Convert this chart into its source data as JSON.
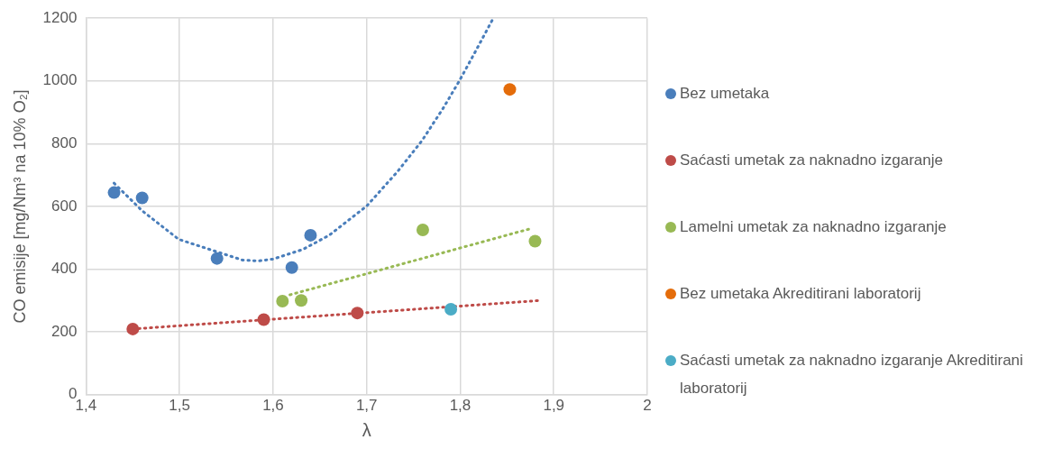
{
  "chart_data": {
    "type": "scatter",
    "xlabel": "λ",
    "ylabel": "CO emisije [mg/Nm³ na 10% O₂]",
    "xlim": [
      1.4,
      2
    ],
    "xticks": [
      {
        "value": 1.4,
        "label": "1,4"
      },
      {
        "value": 1.5,
        "label": "1,5"
      },
      {
        "value": 1.6,
        "label": "1,6"
      },
      {
        "value": 1.7,
        "label": "1,7"
      },
      {
        "value": 1.8,
        "label": "1,8"
      },
      {
        "value": 1.9,
        "label": "1,9"
      },
      {
        "value": 2,
        "label": "2"
      }
    ],
    "ylim": [
      0,
      1200
    ],
    "yticks": [
      0,
      200,
      400,
      600,
      800,
      1000,
      1200
    ],
    "grid": true,
    "legend": "right",
    "marker": "circle",
    "series": [
      {
        "name": "Bez umetaka",
        "color": "#4a7ebb",
        "x": [
          1.43,
          1.46,
          1.54,
          1.62,
          1.64
        ],
        "values": [
          644,
          627,
          434,
          405,
          508
        ]
      },
      {
        "name": "Saćasti umetak za naknadno izgaranje",
        "color": "#be4b48",
        "x": [
          1.45,
          1.59,
          1.69
        ],
        "values": [
          209,
          239,
          260
        ]
      },
      {
        "name": "Lamelni umetak za naknadno izgaranje",
        "color": "#98b954",
        "x": [
          1.61,
          1.63,
          1.76,
          1.88
        ],
        "values": [
          298,
          300,
          525,
          489
        ]
      },
      {
        "name": "Bez umetaka Akreditirani laboratorij",
        "color": "#e46c0a",
        "x": [
          1.853
        ],
        "values": [
          973
        ]
      },
      {
        "name": "Saćasti umetak za naknadno izgaranje Akreditirani laboratorij",
        "color": "#4bacc6",
        "x": [
          1.79
        ],
        "values": [
          272
        ]
      },
      {
        "type": "line",
        "color": "#4a7ebb",
        "line_style": "dotted",
        "marker": "none",
        "x": [
          1.43,
          1.46,
          1.499,
          1.567,
          1.584,
          1.6,
          1.632,
          1.66,
          1.7,
          1.733,
          1.759,
          1.782,
          1.799,
          1.815,
          1.835
        ],
        "values": [
          674,
          586,
          495,
          429,
          426,
          432,
          463,
          508,
          601,
          711,
          809,
          914,
          1000,
          1087,
          1198
        ]
      },
      {
        "type": "line",
        "color": "#be4b48",
        "line_style": "dotted",
        "marker": "none",
        "x": [
          1.45,
          1.886
        ],
        "values": [
          209,
          300
        ]
      },
      {
        "type": "line",
        "color": "#98b954",
        "line_style": "dotted",
        "marker": "none",
        "x": [
          1.618,
          1.874
        ],
        "values": [
          318,
          528
        ]
      }
    ]
  }
}
